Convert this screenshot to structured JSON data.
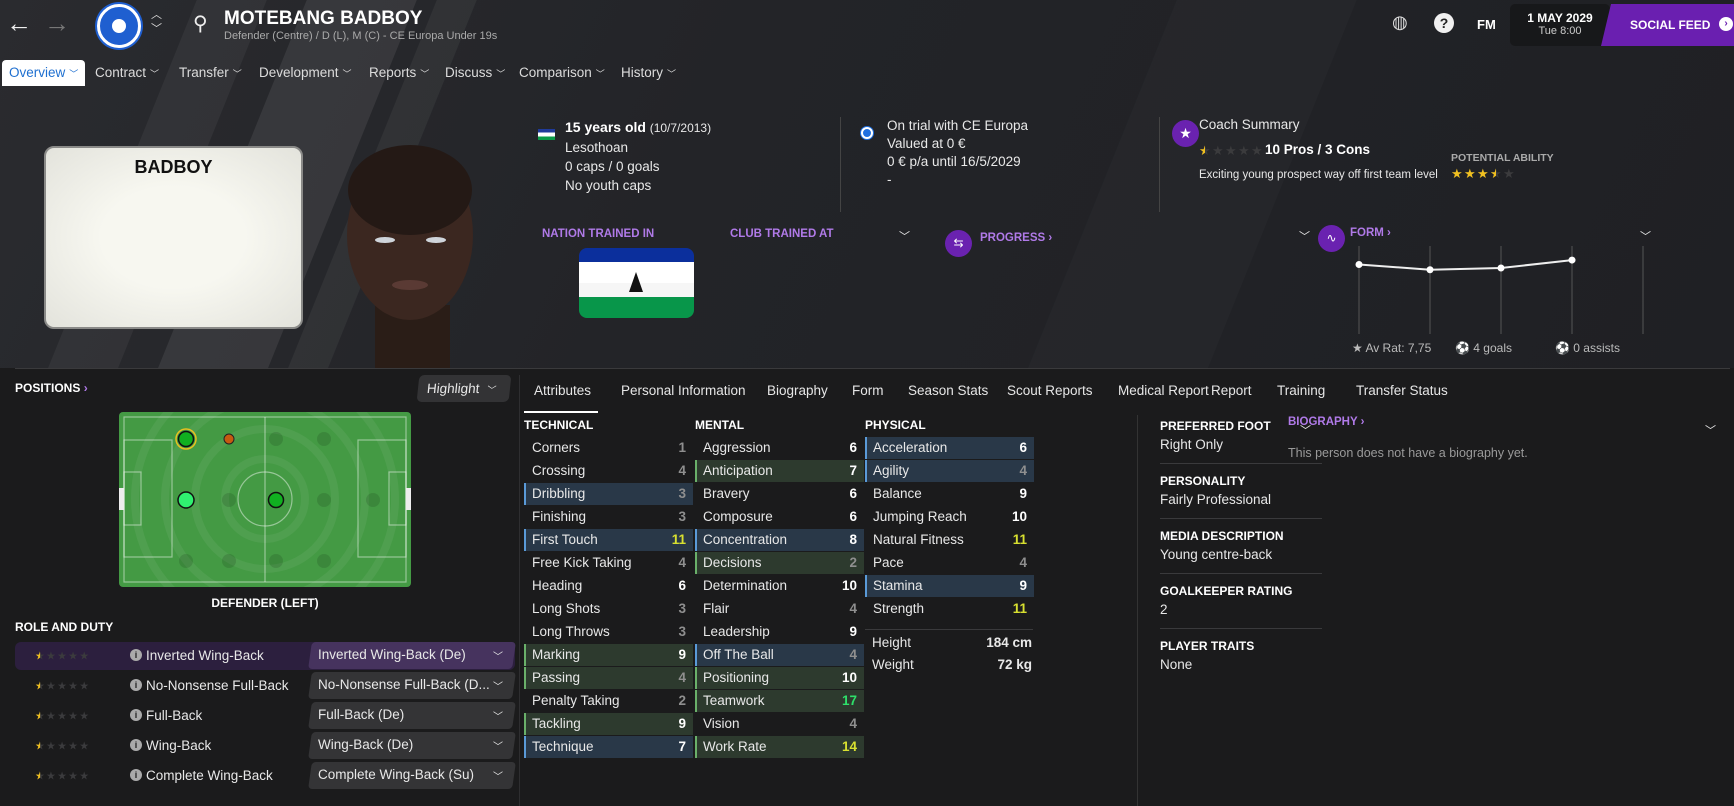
{
  "header": {
    "player_name": "MOTEBANG BADBOY",
    "subtitle": "Defender (Centre) / D (L), M (C) - CE Europa Under 19s",
    "date": "1 MAY 2029",
    "time": "Tue 8:00",
    "fm_label": "FM",
    "social_feed": "SOCIAL FEED",
    "accent": "#6a1fb0"
  },
  "nav": [
    {
      "label": "Overview",
      "active": true
    },
    {
      "label": "Contract"
    },
    {
      "label": "Transfer"
    },
    {
      "label": "Development"
    },
    {
      "label": "Reports"
    },
    {
      "label": "Discuss"
    },
    {
      "label": "Comparison"
    },
    {
      "label": "History"
    }
  ],
  "shirt_name": "BADBOY",
  "personal": {
    "age": "15 years old",
    "dob": "(10/7/2013)",
    "nationality": "Lesothoan",
    "caps": "0 caps / 0 goals",
    "youth_caps": "No youth caps"
  },
  "contract": {
    "status": "On trial with CE Europa",
    "value": "Valued at 0 €",
    "wage": "0 € p/a until 16/5/2029",
    "extra": "-"
  },
  "coach": {
    "title": "Coach Summary",
    "rating_stars": 0.5,
    "pros_cons": "10 Pros / 3 Cons",
    "summary": "Exciting young prospect way off first team level",
    "potential_label": "POTENTIAL ABILITY",
    "potential_stars": 3.5
  },
  "trained": {
    "nation_label": "NATION TRAINED IN",
    "club_label": "CLUB TRAINED AT"
  },
  "progress_label": "PROGRESS ›",
  "form": {
    "label": "FORM ›",
    "levels": [
      0.79,
      0.73,
      0.75,
      0.84
    ],
    "av_rat": "Av Rat: 7,75",
    "goals": "4 goals",
    "assists": "0 assists"
  },
  "positions": {
    "label": "POSITIONS",
    "highlight": "Highlight",
    "selected": "DEFENDER (LEFT)"
  },
  "roles": {
    "label": "ROLE AND DUTY",
    "items": [
      {
        "role": "Inverted Wing-Back",
        "duty": "Inverted Wing-Back (De)",
        "stars": 0.5,
        "selected": true
      },
      {
        "role": "No-Nonsense Full-Back",
        "duty": "No-Nonsense Full-Back (D...",
        "stars": 0.5
      },
      {
        "role": "Full-Back",
        "duty": "Full-Back (De)",
        "stars": 0.5
      },
      {
        "role": "Wing-Back",
        "duty": "Wing-Back (De)",
        "stars": 0.5
      },
      {
        "role": "Complete Wing-Back",
        "duty": "Complete Wing-Back (Su)",
        "stars": 0.5
      }
    ]
  },
  "tabs": [
    "Attributes",
    "Personal Information",
    "Biography",
    "Form",
    "Season Stats",
    "Scout Reports",
    "Medical Report",
    "Report",
    "Training",
    "Transfer Status"
  ],
  "attributes": {
    "technical": {
      "label": "TECHNICAL",
      "items": [
        [
          "Corners",
          1,
          ""
        ],
        [
          "Crossing",
          4,
          ""
        ],
        [
          "Dribbling",
          3,
          "blue"
        ],
        [
          "Finishing",
          3,
          ""
        ],
        [
          "First Touch",
          11,
          "blue"
        ],
        [
          "Free Kick Taking",
          4,
          ""
        ],
        [
          "Heading",
          6,
          ""
        ],
        [
          "Long Shots",
          3,
          ""
        ],
        [
          "Long Throws",
          3,
          ""
        ],
        [
          "Marking",
          9,
          "green"
        ],
        [
          "Passing",
          4,
          "green"
        ],
        [
          "Penalty Taking",
          2,
          ""
        ],
        [
          "Tackling",
          9,
          "green"
        ],
        [
          "Technique",
          7,
          "blue"
        ]
      ]
    },
    "mental": {
      "label": "MENTAL",
      "items": [
        [
          "Aggression",
          6,
          ""
        ],
        [
          "Anticipation",
          7,
          "green"
        ],
        [
          "Bravery",
          6,
          ""
        ],
        [
          "Composure",
          6,
          ""
        ],
        [
          "Concentration",
          8,
          "blue"
        ],
        [
          "Decisions",
          2,
          "green"
        ],
        [
          "Determination",
          10,
          ""
        ],
        [
          "Flair",
          4,
          ""
        ],
        [
          "Leadership",
          9,
          ""
        ],
        [
          "Off The Ball",
          4,
          "blue"
        ],
        [
          "Positioning",
          10,
          "green"
        ],
        [
          "Teamwork",
          17,
          "green"
        ],
        [
          "Vision",
          4,
          ""
        ],
        [
          "Work Rate",
          14,
          "green"
        ]
      ]
    },
    "physical": {
      "label": "PHYSICAL",
      "items": [
        [
          "Acceleration",
          6,
          "blue"
        ],
        [
          "Agility",
          4,
          "blue"
        ],
        [
          "Balance",
          9,
          ""
        ],
        [
          "Jumping Reach",
          10,
          ""
        ],
        [
          "Natural Fitness",
          11,
          ""
        ],
        [
          "Pace",
          4,
          ""
        ],
        [
          "Stamina",
          9,
          "blue"
        ],
        [
          "Strength",
          11,
          ""
        ]
      ]
    },
    "height_label": "Height",
    "height": "184 cm",
    "weight_label": "Weight",
    "weight": "72 kg"
  },
  "info": [
    {
      "label": "PREFERRED FOOT",
      "value": "Right Only"
    },
    {
      "label": "PERSONALITY",
      "value": "Fairly Professional"
    },
    {
      "label": "MEDIA DESCRIPTION",
      "value": "Young centre-back"
    },
    {
      "label": "GOALKEEPER RATING",
      "value": "2"
    },
    {
      "label": "PLAYER TRAITS",
      "value": "None"
    }
  ],
  "biography": {
    "label": "BIOGRAPHY ›",
    "text": "This person does not have a biography yet."
  }
}
